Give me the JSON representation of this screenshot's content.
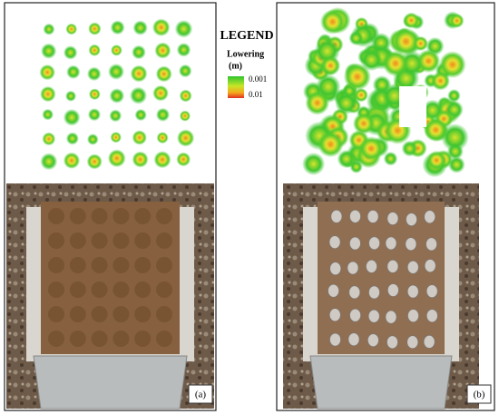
{
  "legend": {
    "title": "LEGEND",
    "label": "Lowering",
    "unit": "(m)",
    "ticks": [
      "0.001",
      "0.01"
    ]
  },
  "panels": [
    {
      "label": "(a)"
    },
    {
      "label": "(b)"
    }
  ]
}
